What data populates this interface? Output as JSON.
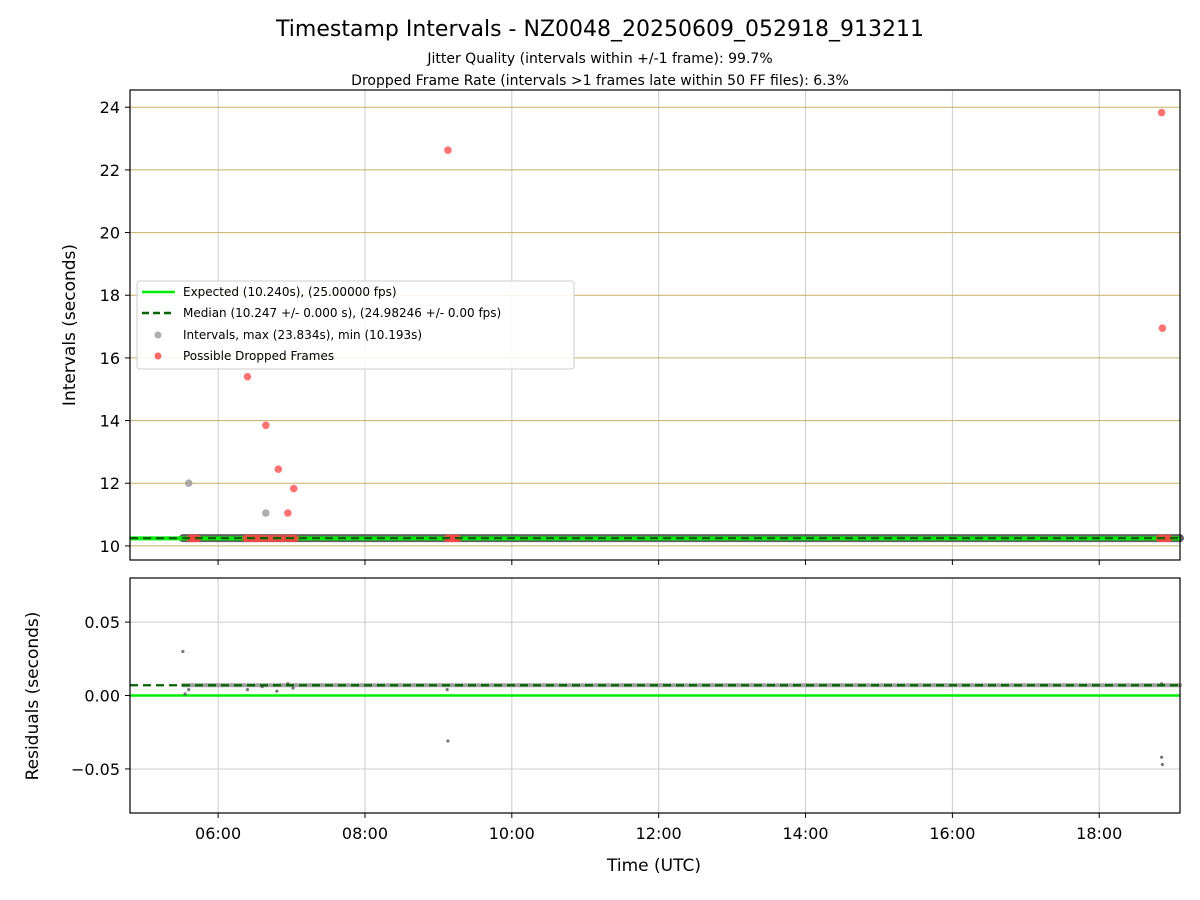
{
  "figure": {
    "title": "Timestamp Intervals - NZ0048_20250609_052918_913211",
    "subtitle_1": "Jitter Quality (intervals within +/-1 frame): 99.7%",
    "subtitle_2": "Dropped Frame Rate (intervals >1 frames late within 50 FF files): 6.3%"
  },
  "chart_data": [
    {
      "type": "scatter",
      "panel": "intervals",
      "ylabel": "Intervals (seconds)",
      "xlabel": "",
      "ylim": [
        9.55,
        24.55
      ],
      "xlim": [
        4.8,
        19.1
      ],
      "yticks": [
        10,
        12,
        14,
        16,
        18,
        20,
        22,
        24
      ],
      "ytick_labels": [
        "10",
        "12",
        "14",
        "16",
        "18",
        "20",
        "22",
        "24"
      ],
      "grid": "on",
      "legend_position": "center-left",
      "colors": {
        "expected": "#00ee00",
        "median": "#006400",
        "intervals": "#999999",
        "dropped": "#ff4444",
        "hgrid": "#c8b060",
        "vgrid": "#cccccc"
      },
      "series": [
        {
          "name": "Expected (10.240s), (25.00000 fps)",
          "kind": "hline",
          "value": 10.24
        },
        {
          "name": "Median (10.247 +/- 0.000 s), (24.98246 +/- 0.00 fps)",
          "kind": "hline-dashed",
          "value": 10.247
        },
        {
          "name": "Intervals, max (23.834s), min (10.193s)",
          "kind": "points",
          "band": {
            "x": [
              5.52,
              19.1
            ],
            "y": 10.247
          },
          "x": [
            5.6,
            6.65,
            9.15,
            18.85
          ],
          "y": [
            12.0,
            11.05,
            10.247,
            10.247
          ]
        },
        {
          "name": "Possible Dropped Frames",
          "kind": "points",
          "x": [
            5.62,
            5.65,
            5.68,
            5.7,
            5.72,
            6.38,
            6.41,
            6.45,
            6.48,
            6.52,
            6.55,
            6.6,
            6.65,
            6.7,
            6.75,
            6.8,
            6.85,
            6.9,
            6.95,
            6.98,
            7.02,
            7.05,
            9.12,
            9.15,
            9.18,
            9.2,
            9.23,
            9.26,
            18.82,
            18.85,
            18.88,
            18.92,
            18.95,
            6.4,
            6.65,
            6.82,
            6.95,
            7.03,
            9.13,
            18.85,
            18.86
          ],
          "y": [
            10.24,
            10.24,
            10.24,
            10.24,
            10.24,
            10.24,
            10.24,
            10.24,
            10.24,
            10.24,
            10.24,
            10.24,
            10.24,
            10.24,
            10.24,
            10.24,
            10.24,
            10.24,
            10.24,
            10.24,
            10.24,
            10.24,
            10.24,
            10.24,
            10.24,
            10.24,
            10.24,
            10.24,
            10.24,
            10.24,
            10.24,
            10.24,
            10.24,
            15.4,
            13.85,
            12.45,
            11.05,
            11.83,
            22.63,
            23.83,
            16.95
          ]
        }
      ]
    },
    {
      "type": "scatter",
      "panel": "residuals",
      "ylabel": "Residuals (seconds)",
      "xlabel": "Time (UTC)",
      "ylim": [
        -0.08,
        0.08
      ],
      "xlim": [
        4.8,
        19.1
      ],
      "yticks": [
        0.05,
        0.0,
        -0.05
      ],
      "ytick_labels": [
        "0.05",
        "0.00",
        "−0.05"
      ],
      "xticks": [
        6,
        8,
        10,
        12,
        14,
        16,
        18
      ],
      "xtick_labels": [
        "06:00",
        "08:00",
        "10:00",
        "12:00",
        "14:00",
        "16:00",
        "18:00"
      ],
      "grid": "on",
      "series": [
        {
          "name": "",
          "kind": "hline",
          "value": 0.0
        },
        {
          "name": "",
          "kind": "hline-dashed",
          "value": 0.007
        },
        {
          "name": "",
          "kind": "points",
          "band": {
            "x": [
              5.52,
              19.1
            ],
            "y": 0.007
          },
          "x": [
            5.52,
            5.55,
            5.6,
            6.4,
            6.6,
            6.8,
            6.95,
            7.02,
            9.12,
            9.13,
            18.85,
            18.86,
            18.85
          ],
          "y": [
            0.03,
            0.001,
            0.004,
            0.004,
            0.006,
            0.003,
            0.008,
            0.005,
            0.004,
            -0.031,
            -0.042,
            -0.047,
            0.008
          ]
        }
      ]
    }
  ]
}
